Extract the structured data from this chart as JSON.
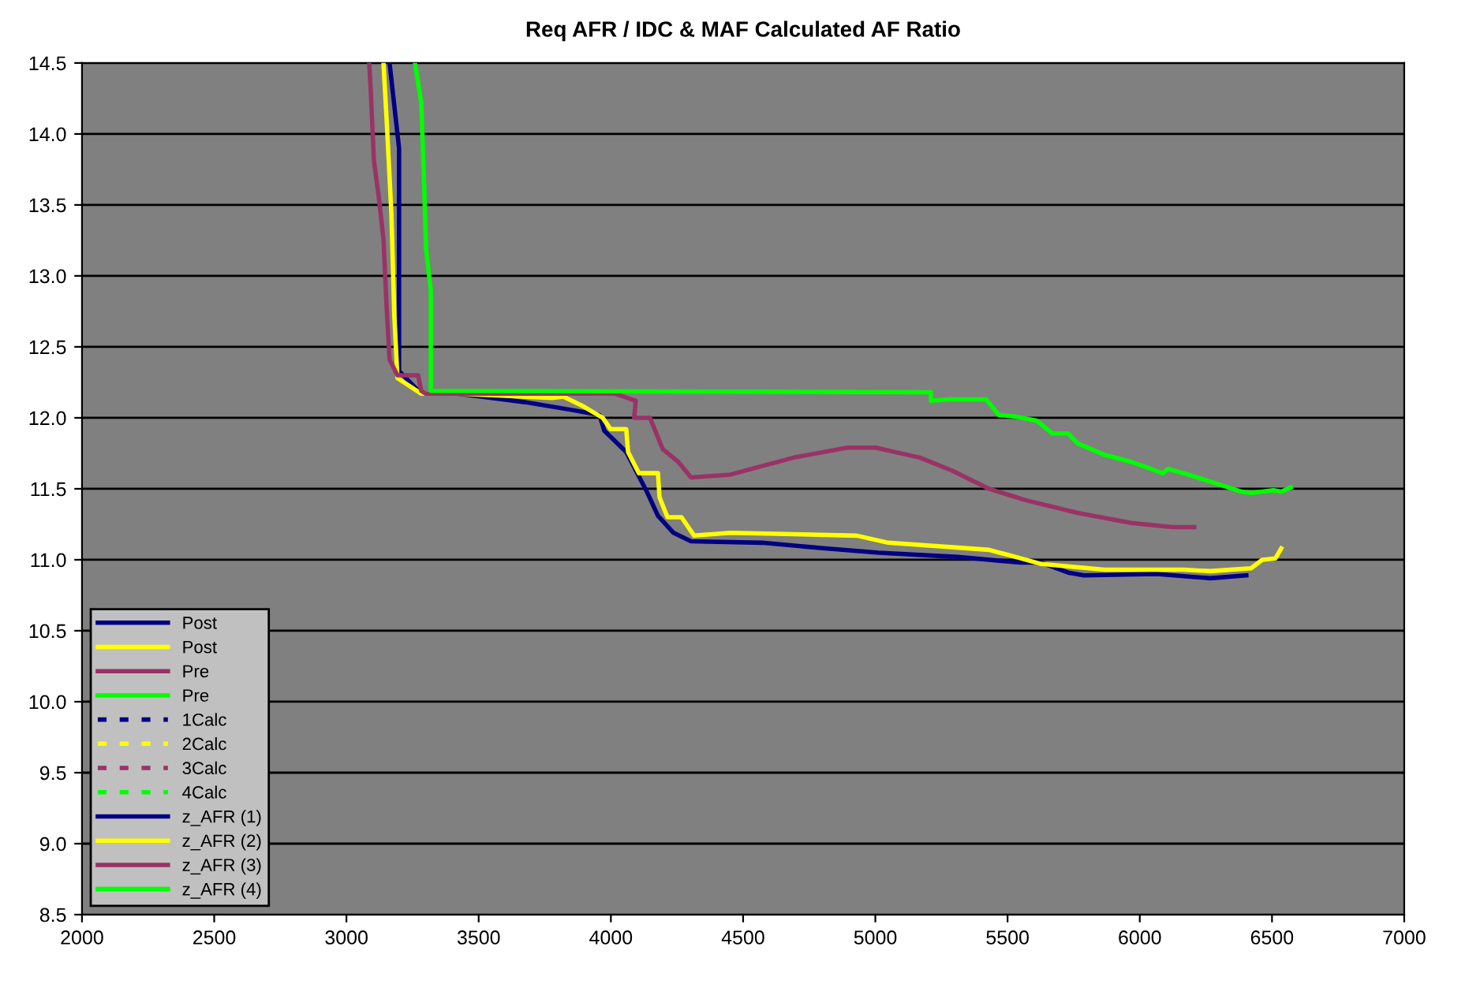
{
  "chart_data": {
    "type": "line",
    "title": "Req AFR / IDC & MAF Calculated AF Ratio",
    "xlim": [
      2000,
      7000
    ],
    "xticks": [
      2000,
      2500,
      3000,
      3500,
      4000,
      4500,
      5000,
      5500,
      6000,
      6500,
      7000
    ],
    "ylim": [
      8.5,
      14.5
    ],
    "yticks": [
      8.5,
      {
        "value": 9,
        "label": "9.0"
      },
      9.5,
      {
        "value": 10,
        "label": "10.0"
      },
      10.5,
      {
        "value": 11,
        "label": "11.0"
      },
      11.5,
      {
        "value": 12,
        "label": "12.0"
      },
      12.5,
      {
        "value": 13,
        "label": "13.0"
      },
      13.5,
      {
        "value": 14,
        "label": "14.0"
      },
      14.5
    ],
    "grid": "y",
    "legend": "bottom left",
    "marker": "none",
    "series": [
      {
        "name": "Post",
        "color": "#000080",
        "line_style": "solid",
        "x": [
          3163,
          3199,
          3199,
          3283,
          3420,
          3677,
          3838,
          3957,
          3975,
          4058,
          4094,
          4136,
          4178,
          4237,
          4303,
          4572,
          4810,
          5013,
          5311,
          5550,
          5628,
          5729,
          5789,
          6063,
          6266,
          6403
        ],
        "values": [
          14.5,
          13.9,
          12.33,
          12.17,
          12.17,
          12.11,
          12.06,
          12.02,
          11.91,
          11.76,
          11.63,
          11.48,
          11.31,
          11.19,
          11.13,
          11.12,
          11.08,
          11.05,
          11.02,
          10.98,
          10.98,
          10.91,
          10.89,
          10.9,
          10.87,
          10.89
        ]
      },
      {
        "name": "Post",
        "color": "#ffff00",
        "line_style": "solid",
        "x": [
          3140,
          3152,
          3170,
          3181,
          3193,
          3283,
          3420,
          3778,
          3820,
          3897,
          3969,
          3999,
          4058,
          4065,
          4106,
          4178,
          4184,
          4214,
          4267,
          4315,
          4452,
          4930,
          5049,
          5430,
          5550,
          5628,
          5866,
          6165,
          6266,
          6421,
          6463,
          6513,
          6535
        ],
        "values": [
          14.5,
          14.1,
          13.44,
          12.72,
          12.28,
          12.17,
          12.17,
          12.14,
          12.15,
          12.08,
          12.0,
          11.92,
          11.92,
          11.76,
          11.61,
          11.61,
          11.44,
          11.3,
          11.3,
          11.17,
          11.19,
          11.17,
          11.12,
          11.07,
          11.01,
          10.97,
          10.93,
          10.93,
          10.92,
          10.94,
          11.0,
          11.01,
          11.08
        ]
      },
      {
        "name": "Pre",
        "color": "#993366",
        "line_style": "solid",
        "x": [
          3086,
          3092,
          3104,
          3122,
          3140,
          3152,
          3163,
          3193,
          3271,
          3283,
          3300,
          4017,
          4094,
          4088,
          4148,
          4196,
          4255,
          4303,
          4452,
          4691,
          4894,
          5001,
          5168,
          5288,
          5430,
          5568,
          5765,
          5968,
          6123,
          6206
        ],
        "values": [
          14.5,
          14.3,
          13.81,
          13.56,
          13.26,
          12.78,
          12.41,
          12.3,
          12.3,
          12.19,
          12.17,
          12.17,
          12.12,
          12.0,
          12.0,
          11.78,
          11.69,
          11.58,
          11.6,
          11.72,
          11.79,
          11.79,
          11.72,
          11.63,
          11.5,
          11.42,
          11.33,
          11.26,
          11.23,
          11.23
        ]
      },
      {
        "name": "Pre",
        "color": "#00ff00",
        "line_style": "solid",
        "x": [
          3259,
          3283,
          3295,
          3301,
          3319,
          3319,
          5210,
          5210,
          5282,
          5419,
          5467,
          5527,
          5610,
          5670,
          5729,
          5765,
          5866,
          5968,
          6087,
          6107,
          6183,
          6302,
          6385,
          6421,
          6505,
          6535,
          6571
        ],
        "values": [
          14.5,
          14.22,
          13.56,
          13.19,
          12.9,
          12.19,
          12.18,
          12.12,
          12.13,
          12.13,
          12.02,
          12.01,
          11.98,
          11.89,
          11.89,
          11.82,
          11.74,
          11.69,
          11.61,
          11.64,
          11.6,
          11.53,
          11.48,
          11.47,
          11.49,
          11.48,
          11.51
        ]
      },
      {
        "name": "1Calc",
        "color": "#000080",
        "line_style": "dashed"
      },
      {
        "name": "2Calc",
        "color": "#ffff00",
        "line_style": "dashed"
      },
      {
        "name": "3Calc",
        "color": "#993366",
        "line_style": "dashed"
      },
      {
        "name": "4Calc",
        "color": "#00ff00",
        "line_style": "dashed"
      },
      {
        "name": "z_AFR (1)",
        "color": "#000080",
        "line_style": "solid"
      },
      {
        "name": "z_AFR (2)",
        "color": "#ffff00",
        "line_style": "solid"
      },
      {
        "name": "z_AFR (3)",
        "color": "#993366",
        "line_style": "solid"
      },
      {
        "name": "z_AFR (4)",
        "color": "#00ff00",
        "line_style": "solid"
      }
    ]
  }
}
